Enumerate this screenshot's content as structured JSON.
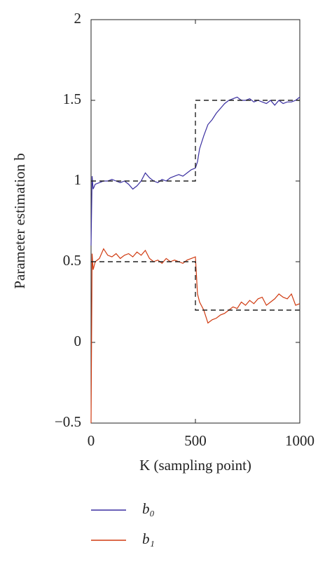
{
  "chart_data": {
    "type": "line",
    "xlabel": "K (sampling point)",
    "ylabel": "Parameter estimation b",
    "x": [
      0,
      5,
      10,
      20,
      40,
      60,
      80,
      100,
      120,
      140,
      160,
      180,
      200,
      220,
      240,
      260,
      280,
      300,
      320,
      340,
      360,
      380,
      400,
      420,
      440,
      460,
      480,
      500,
      510,
      520,
      540,
      560,
      580,
      600,
      620,
      640,
      660,
      680,
      700,
      720,
      740,
      760,
      780,
      800,
      820,
      840,
      860,
      880,
      900,
      920,
      940,
      960,
      980,
      1000
    ],
    "series": [
      {
        "name": "b₀",
        "color": "#3a2fa0",
        "values": [
          0.6,
          1.03,
          0.95,
          0.98,
          0.99,
          1.0,
          1.0,
          1.01,
          1.0,
          0.99,
          1.0,
          0.98,
          0.95,
          0.97,
          1.0,
          1.05,
          1.02,
          1.0,
          0.99,
          1.01,
          1.0,
          1.02,
          1.03,
          1.04,
          1.03,
          1.05,
          1.07,
          1.08,
          1.12,
          1.2,
          1.28,
          1.35,
          1.38,
          1.42,
          1.45,
          1.48,
          1.5,
          1.51,
          1.52,
          1.5,
          1.5,
          1.51,
          1.49,
          1.5,
          1.49,
          1.48,
          1.5,
          1.47,
          1.5,
          1.48,
          1.49,
          1.49,
          1.5,
          1.52
        ]
      },
      {
        "name": "b₁",
        "color": "#d03a10",
        "values": [
          -0.5,
          0.55,
          0.45,
          0.5,
          0.52,
          0.58,
          0.54,
          0.53,
          0.55,
          0.52,
          0.54,
          0.55,
          0.53,
          0.56,
          0.54,
          0.57,
          0.52,
          0.5,
          0.51,
          0.49,
          0.52,
          0.5,
          0.51,
          0.5,
          0.49,
          0.51,
          0.52,
          0.53,
          0.3,
          0.25,
          0.2,
          0.12,
          0.14,
          0.15,
          0.17,
          0.18,
          0.2,
          0.22,
          0.21,
          0.25,
          0.23,
          0.26,
          0.24,
          0.27,
          0.28,
          0.23,
          0.25,
          0.27,
          0.3,
          0.28,
          0.27,
          0.3,
          0.23,
          0.24
        ]
      },
      {
        "color": "#222222",
        "dashed": true,
        "x": [
          0,
          500,
          500,
          1000
        ],
        "values": [
          1,
          1,
          1.5,
          1.5
        ]
      },
      {
        "color": "#222222",
        "dashed": true,
        "x": [
          0,
          500,
          500,
          1000
        ],
        "values": [
          0.5,
          0.5,
          0.2,
          0.2
        ]
      }
    ],
    "xlim": [
      0,
      1000
    ],
    "xticks": [
      0,
      500,
      1000
    ],
    "ylim": [
      -0.5,
      2
    ],
    "yticks": [
      {
        "value": -0.5,
        "label": "−0.5"
      },
      0,
      0.5,
      1,
      1.5,
      2
    ],
    "grid": false
  }
}
